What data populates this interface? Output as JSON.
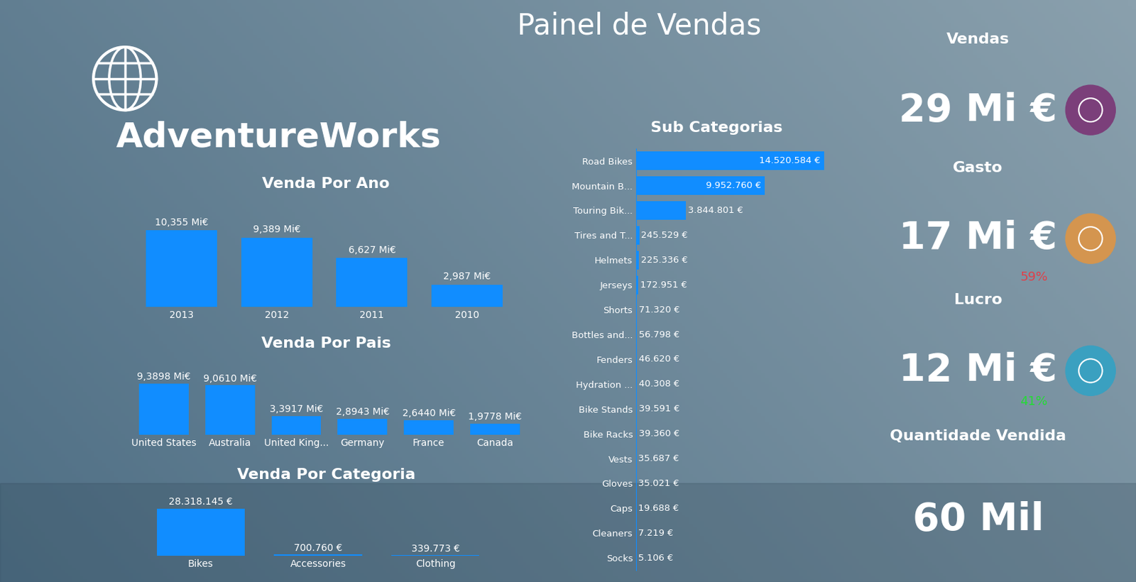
{
  "title": "Painel de Vendas",
  "logo": "AdventureWorks",
  "kpis": [
    {
      "label": "Vendas",
      "text": "29 Mi €",
      "icon_color": "#7b3f7a"
    },
    {
      "label": "Gasto",
      "text": "17 Mi €",
      "percent": "59%",
      "percent_color": "#e0404a",
      "icon_color": "#d4954f"
    },
    {
      "label": "Lucro",
      "text": "12 Mi €",
      "percent": "41%",
      "percent_color": "#22dd33",
      "icon_color": "#3aa0c0"
    },
    {
      "label": "Quantidade Vendida",
      "text": "60 Mil"
    }
  ],
  "chart_data": [
    {
      "type": "bar",
      "title": "Venda Por Ano",
      "color": "#118dff",
      "data_labels": true,
      "tick_labels": "x",
      "categories": [
        "2013",
        "2012",
        "2011",
        "2010"
      ],
      "values": [
        10.355,
        9.389,
        6.627,
        2.987
      ],
      "value_labels": [
        "10,355 Mi€",
        "9,389 Mi€",
        "6,627 Mi€",
        "2,987 Mi€"
      ]
    },
    {
      "type": "bar",
      "title": "Venda Por Pais",
      "color": "#118dff",
      "data_labels": true,
      "tick_labels": "x",
      "categories": [
        "United States",
        "Australia",
        "United King...",
        "Germany",
        "France",
        "Canada"
      ],
      "values": [
        9.3898,
        9.061,
        3.3917,
        2.8943,
        2.644,
        1.9778
      ],
      "value_labels": [
        "9,3898 Mi€",
        "9,0610 Mi€",
        "3,3917 Mi€",
        "2,8943 Mi€",
        "2,6440 Mi€",
        "1,9778 Mi€"
      ]
    },
    {
      "type": "bar",
      "title": "Venda Por Categoria",
      "color": "#118dff",
      "data_labels": true,
      "tick_labels": "x",
      "categories": [
        "Bikes",
        "Accessories",
        "Clothing"
      ],
      "values": [
        28318145,
        700760,
        339773
      ],
      "value_labels": [
        "28.318.145 €",
        "700.760 €",
        "339.773 €"
      ]
    },
    {
      "type": "bar",
      "title": "Sub Categorias",
      "orientation": "horizontal",
      "color": "#118dff",
      "data_labels": true,
      "tick_labels": "y",
      "categories": [
        "Road Bikes",
        "Mountain B...",
        "Touring Bik...",
        "Tires and T...",
        "Helmets",
        "Jerseys",
        "Shorts",
        "Bottles and...",
        "Fenders",
        "Hydration ...",
        "Bike Stands",
        "Bike Racks",
        "Vests",
        "Gloves",
        "Caps",
        "Cleaners",
        "Socks"
      ],
      "values": [
        14520584,
        9952760,
        3844801,
        245529,
        225336,
        172951,
        71320,
        56798,
        46620,
        40308,
        39591,
        39360,
        35687,
        35021,
        19688,
        7219,
        5106
      ],
      "value_labels": [
        "14.520.584 €",
        "9.952.760 €",
        "3.844.801 €",
        "245.529 €",
        "225.336 €",
        "172.951 €",
        "71.320 €",
        "56.798 €",
        "46.620 €",
        "40.308 €",
        "39.591 €",
        "39.360 €",
        "35.687 €",
        "35.021 €",
        "19.688 €",
        "7.219 €",
        "5.106 €"
      ]
    }
  ]
}
